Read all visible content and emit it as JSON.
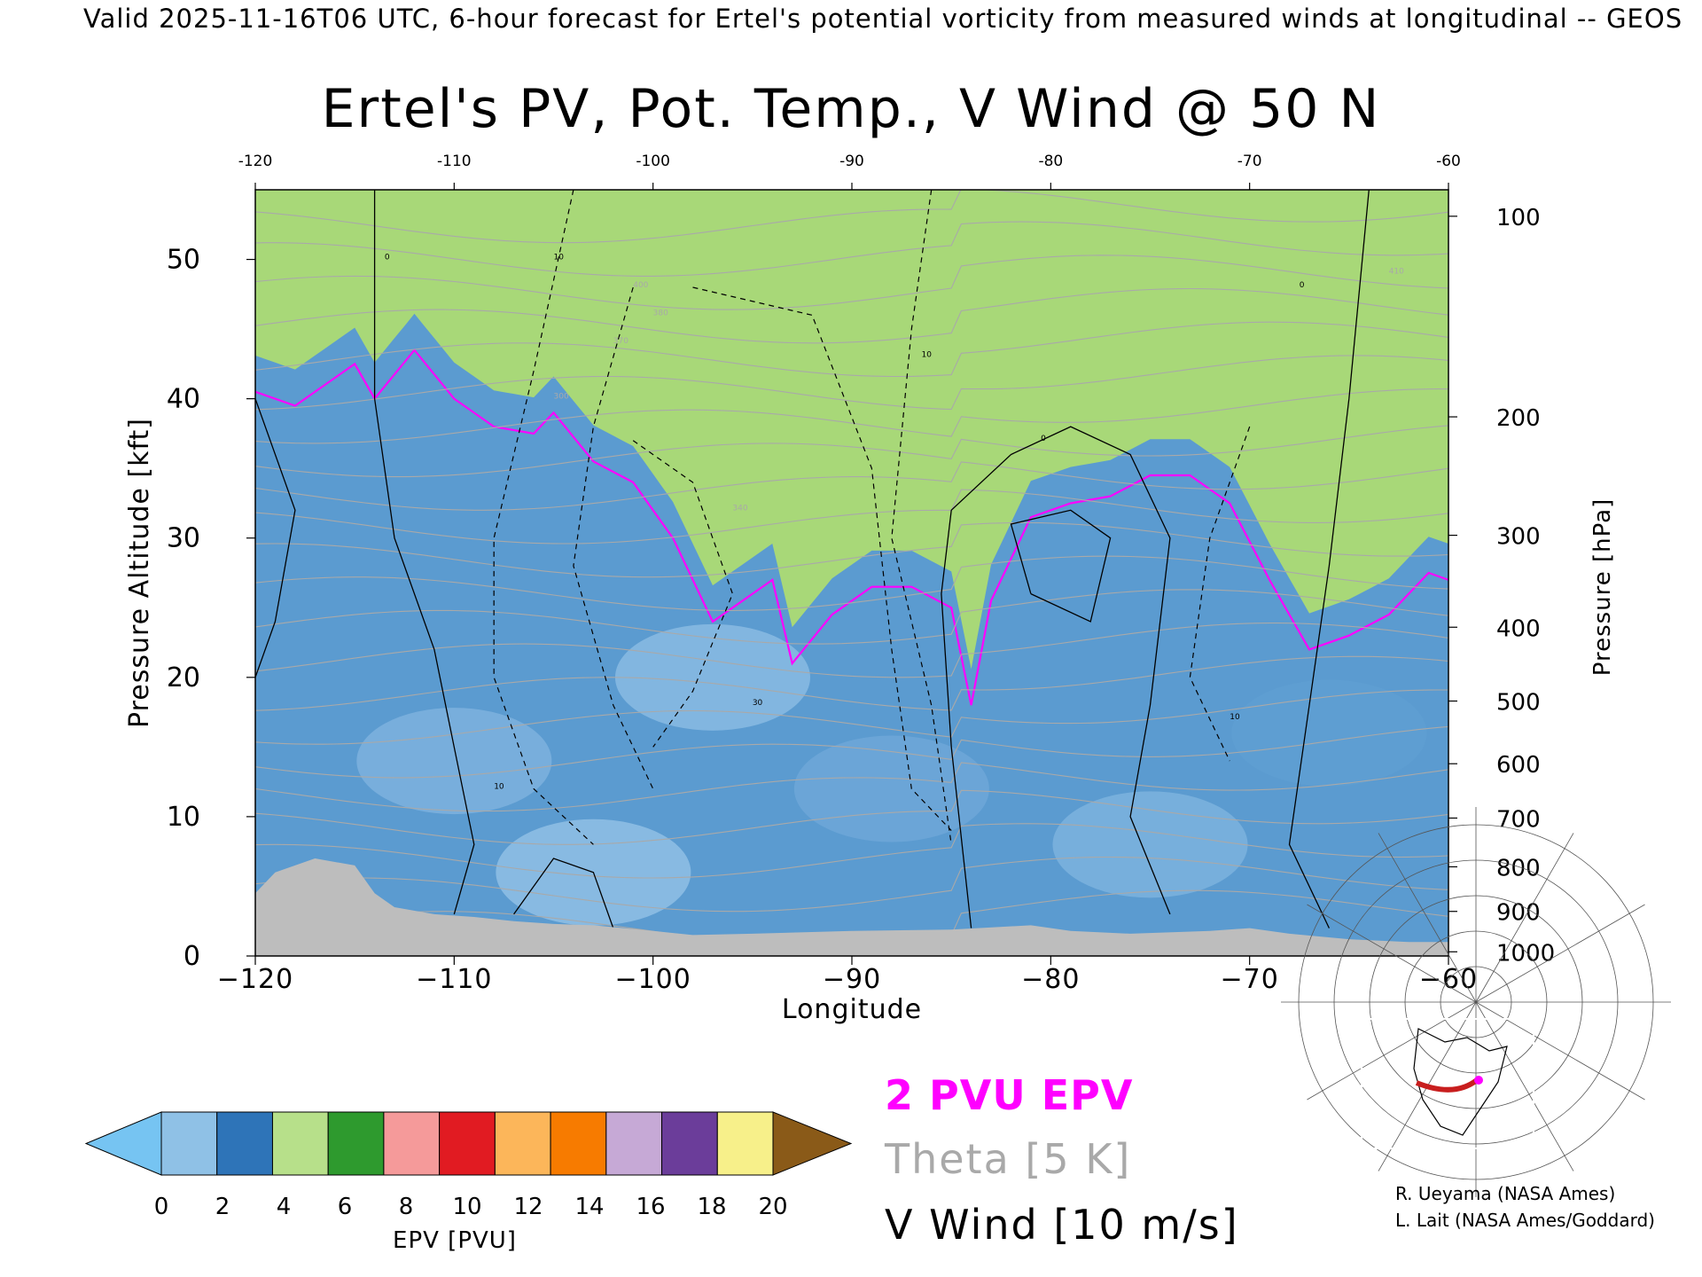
{
  "header": {
    "valid_line": "Valid 2025-11-16T06 UTC, 6-hour forecast for Ertel's potential vorticity from measured winds at longitudinal -- GEOS"
  },
  "legend": {
    "pv_label": "2 PVU EPV",
    "theta_label": "Theta [5 K]",
    "vwind_label": "V Wind [10 m/s]",
    "colors": {
      "pv": "#ff00ff",
      "theta": "#a9a9a9",
      "vwind": "#000000"
    }
  },
  "credits": {
    "line1": "R. Ueyama (NASA Ames)",
    "line2": "L. Lait (NASA Ames/Goddard)"
  },
  "chart_data": [
    {
      "type": "heatmap",
      "title": "Ertel's PV, Pot. Temp., V Wind @ 50 N",
      "xlabel": "Longitude",
      "ylabel": "Pressure Altitude [kft]",
      "y2label": "Pressure [hPa]",
      "xlim": [
        -120,
        -60
      ],
      "ylim": [
        0,
        55
      ],
      "x_ticks": [
        -120,
        -110,
        -100,
        -90,
        -80,
        -70,
        -60
      ],
      "x_tick_labels_bottom": [
        "−120",
        "−110",
        "−100",
        "−90",
        "−80",
        "−70",
        "−60"
      ],
      "x_tick_labels_top": [
        "-120",
        "-110",
        "-100",
        "-90",
        "-80",
        "-70",
        "-60"
      ],
      "y_ticks": [
        0,
        10,
        20,
        30,
        40,
        50
      ],
      "y_tick_labels": [
        "0",
        "10",
        "20",
        "30",
        "40",
        "50"
      ],
      "pressure_ticks": [
        {
          "hpa": 100,
          "kft": 53.1
        },
        {
          "hpa": 200,
          "kft": 38.7
        },
        {
          "hpa": 300,
          "kft": 30.2
        },
        {
          "hpa": 400,
          "kft": 23.6
        },
        {
          "hpa": 500,
          "kft": 18.3
        },
        {
          "hpa": 600,
          "kft": 13.8
        },
        {
          "hpa": 700,
          "kft": 9.9
        },
        {
          "hpa": 800,
          "kft": 6.4
        },
        {
          "hpa": 900,
          "kft": 3.2
        },
        {
          "hpa": 1000,
          "kft": 0.3
        }
      ],
      "pressure_tick_labels": [
        "100",
        "200",
        "300",
        "400",
        "500",
        "600",
        "700",
        "800",
        "900",
        "1000"
      ],
      "tropopause_2pvu_kft": [
        [
          -120,
          40.5
        ],
        [
          -118,
          39.5
        ],
        [
          -116,
          41.5
        ],
        [
          -115,
          42.5
        ],
        [
          -114,
          40.0
        ],
        [
          -112,
          43.5
        ],
        [
          -110,
          40.0
        ],
        [
          -108,
          38.0
        ],
        [
          -106,
          37.5
        ],
        [
          -105,
          39.0
        ],
        [
          -103,
          35.5
        ],
        [
          -101,
          34.0
        ],
        [
          -99,
          30.0
        ],
        [
          -97,
          24.0
        ],
        [
          -96,
          25.0
        ],
        [
          -94,
          27.0
        ],
        [
          -93,
          21.0
        ],
        [
          -91,
          24.5
        ],
        [
          -89,
          26.5
        ],
        [
          -87,
          26.5
        ],
        [
          -85,
          25.0
        ],
        [
          -84,
          18.0
        ],
        [
          -83,
          25.5
        ],
        [
          -81,
          31.5
        ],
        [
          -79,
          32.5
        ],
        [
          -77,
          33.0
        ],
        [
          -75,
          34.5
        ],
        [
          -73,
          34.5
        ],
        [
          -71,
          32.5
        ],
        [
          -69,
          27.0
        ],
        [
          -67,
          22.0
        ],
        [
          -65,
          23.0
        ],
        [
          -63,
          24.5
        ],
        [
          -61,
          27.5
        ],
        [
          -60,
          27.0
        ]
      ],
      "terrain_kft": [
        [
          -120,
          4.5
        ],
        [
          -119,
          6.0
        ],
        [
          -117,
          7.0
        ],
        [
          -115,
          6.5
        ],
        [
          -114,
          4.5
        ],
        [
          -113,
          3.5
        ],
        [
          -111,
          3.0
        ],
        [
          -109,
          2.8
        ],
        [
          -107,
          2.5
        ],
        [
          -105,
          2.3
        ],
        [
          -103,
          2.2
        ],
        [
          -100,
          1.8
        ],
        [
          -98,
          1.5
        ],
        [
          -95,
          1.6
        ],
        [
          -90,
          1.8
        ],
        [
          -85,
          1.9
        ],
        [
          -81,
          2.2
        ],
        [
          -79,
          1.8
        ],
        [
          -76,
          1.6
        ],
        [
          -72,
          1.8
        ],
        [
          -70,
          2.0
        ],
        [
          -68,
          1.6
        ],
        [
          -65,
          1.2
        ],
        [
          -62,
          1.0
        ],
        [
          -60,
          1.0
        ]
      ],
      "theta_labels": [
        "300",
        "340",
        "370",
        "380",
        "400",
        "410"
      ],
      "vwind_labels": [
        "0",
        "10",
        "-10",
        "30"
      ]
    },
    {
      "type": "colorbar",
      "label": "EPV [PVU]",
      "ticks": [
        "0",
        "2",
        "4",
        "6",
        "8",
        "10",
        "12",
        "14",
        "16",
        "18",
        "20"
      ],
      "colors": [
        "#8fc1e6",
        "#2e74b8",
        "#b7e08a",
        "#2e9a2e",
        "#f59a9a",
        "#e11b22",
        "#fcb65a",
        "#f77b00",
        "#c6a9d6",
        "#6b3d9a",
        "#f7f08a"
      ],
      "under_color": "#76c4f2",
      "over_color": "#8a5a18"
    }
  ]
}
